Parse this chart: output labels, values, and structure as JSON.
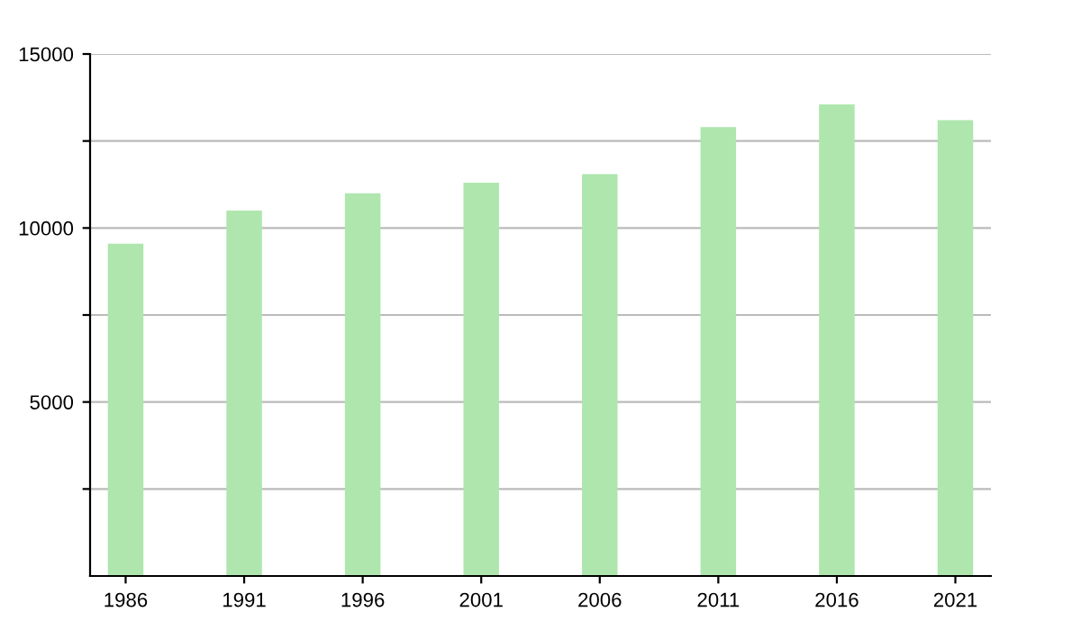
{
  "chart_data": {
    "type": "bar",
    "categories": [
      "1986",
      "1991",
      "1996",
      "2001",
      "2006",
      "2011",
      "2016",
      "2021"
    ],
    "values": [
      9550,
      10500,
      11000,
      11300,
      11550,
      12900,
      13550,
      13100
    ],
    "color": "#aee6ad",
    "ylim": [
      0,
      15000
    ],
    "yticks": [
      {
        "value": 2500,
        "label": null
      },
      5000,
      {
        "value": 7500,
        "label": null
      },
      10000,
      {
        "value": 12500,
        "label": null
      },
      15000
    ],
    "grid": "y"
  }
}
